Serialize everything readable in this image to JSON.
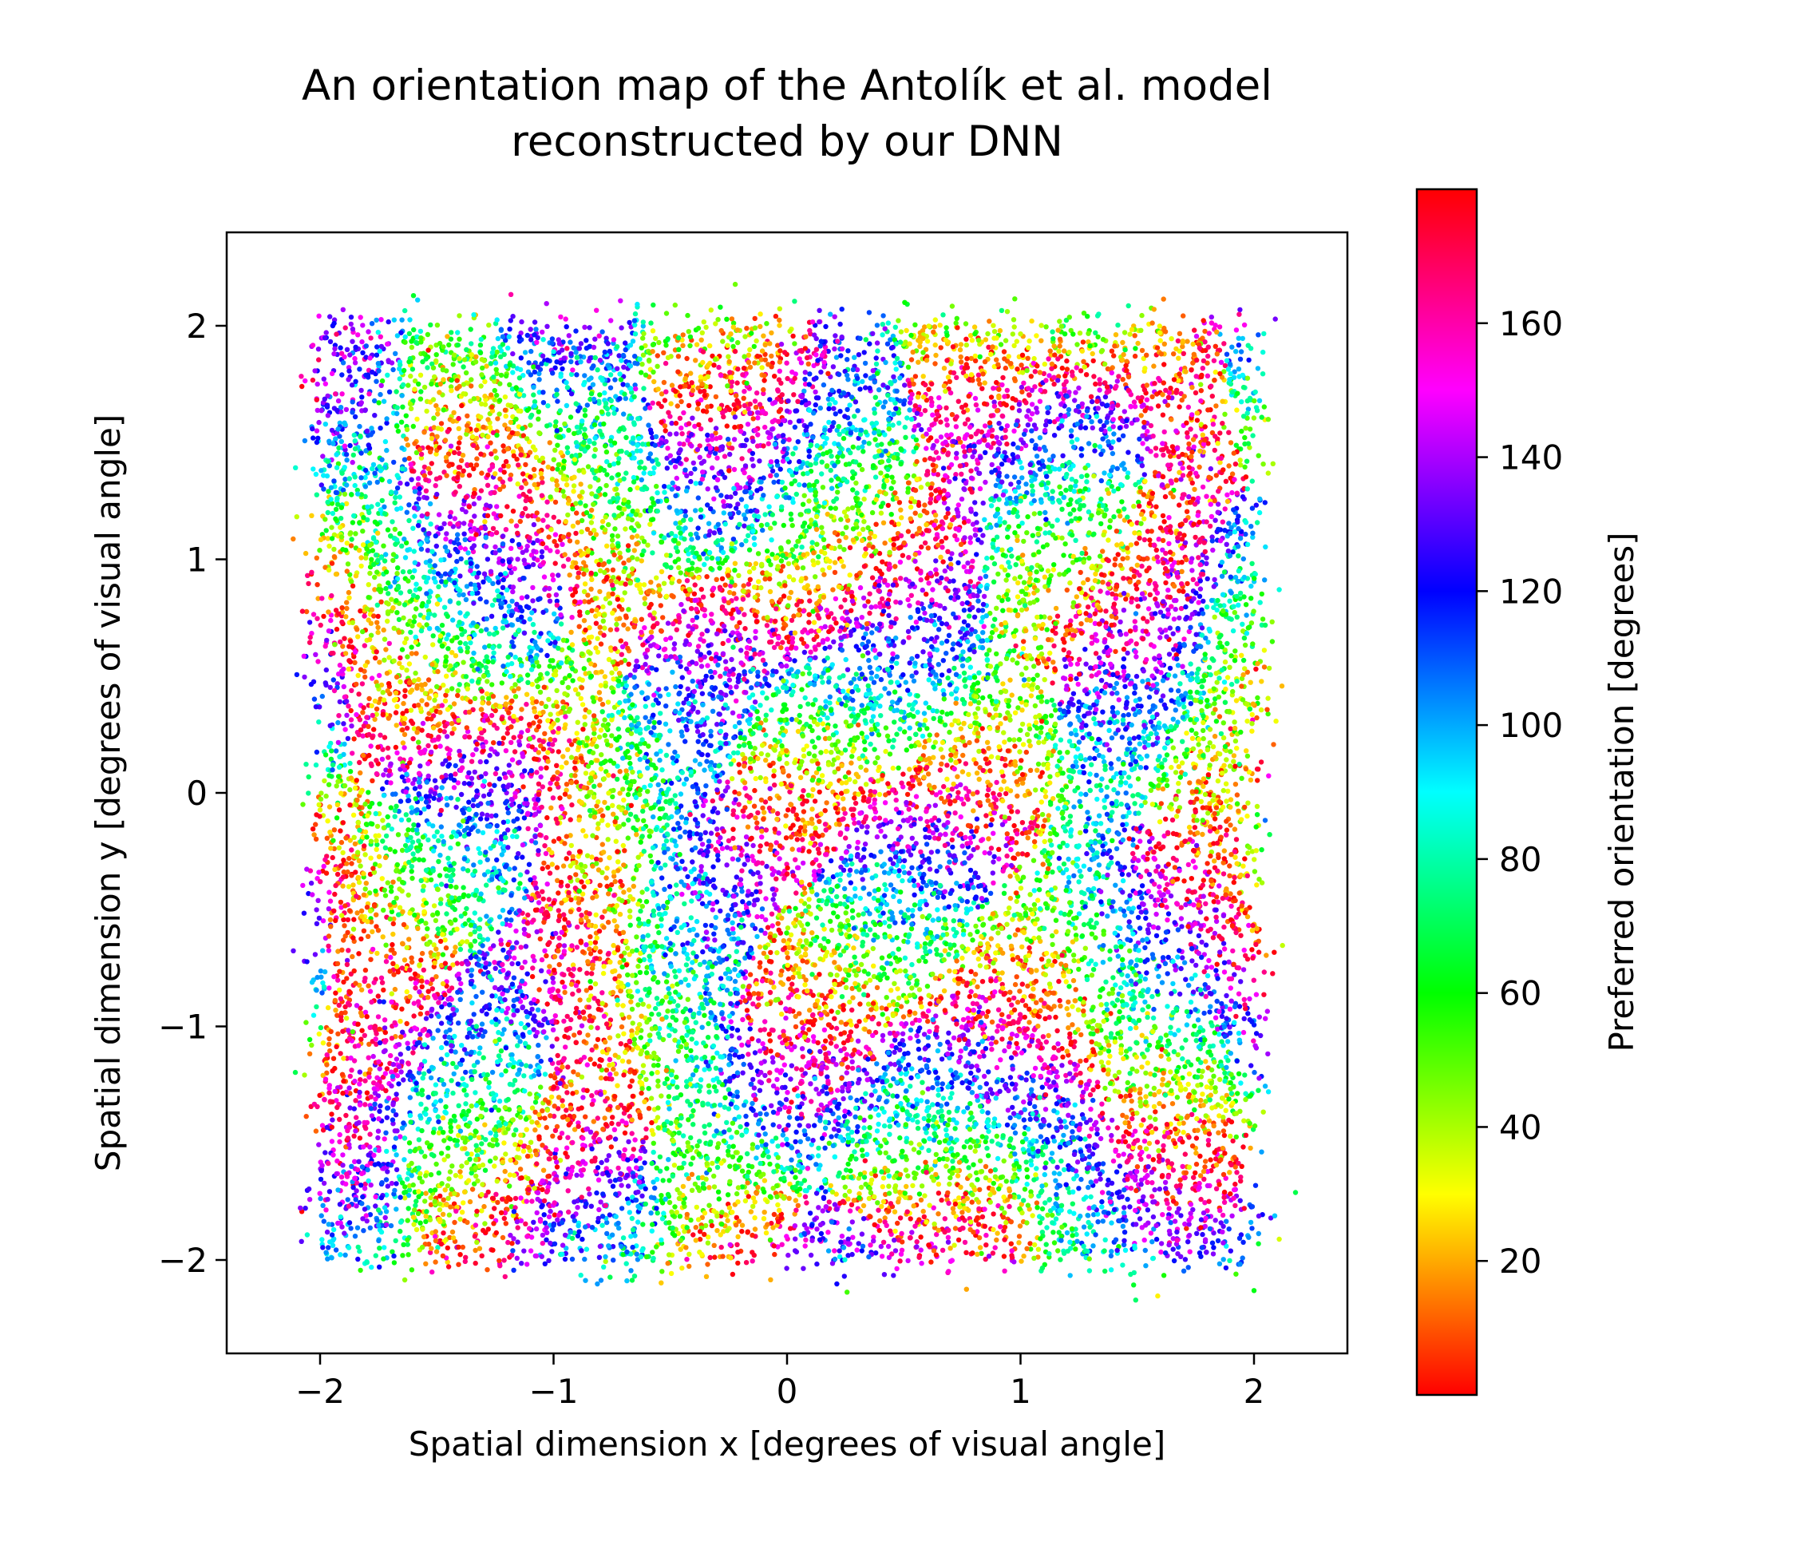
{
  "chart_data": {
    "type": "scatter",
    "title_lines": [
      "An orientation map of the Antolík et al. model",
      "reconstructed by our DNN"
    ],
    "xlabel": "Spatial dimension x [degrees of visual angle]",
    "ylabel": "Spatial dimension y [degrees of visual angle]",
    "xlim": [
      -2.4,
      2.4
    ],
    "ylim": [
      -2.4,
      2.4
    ],
    "xticks": [
      {
        "value": -2,
        "label": "−2"
      },
      {
        "value": -1,
        "label": "−1"
      },
      {
        "value": 0,
        "label": "0"
      },
      {
        "value": 1,
        "label": "1"
      },
      {
        "value": 2,
        "label": "2"
      }
    ],
    "yticks": [
      {
        "value": -2,
        "label": "−2"
      },
      {
        "value": -1,
        "label": "−1"
      },
      {
        "value": 0,
        "label": "0"
      },
      {
        "value": 1,
        "label": "1"
      },
      {
        "value": 2,
        "label": "2"
      }
    ],
    "grid": false,
    "point_distribution": {
      "x_range": [
        -2.0,
        2.0
      ],
      "y_range": [
        -2.0,
        2.0
      ],
      "approx_point_count": 20000,
      "color_variable": "preferred_orientation"
    },
    "colorbar": {
      "label": "Preferred orientation [degrees]",
      "colormap": "hsv",
      "range": [
        0,
        180
      ],
      "ticks": [
        {
          "value": 20,
          "label": "20"
        },
        {
          "value": 40,
          "label": "40"
        },
        {
          "value": 60,
          "label": "60"
        },
        {
          "value": 80,
          "label": "80"
        },
        {
          "value": 100,
          "label": "100"
        },
        {
          "value": 120,
          "label": "120"
        },
        {
          "value": 140,
          "label": "140"
        },
        {
          "value": 160,
          "label": "160"
        }
      ]
    }
  }
}
